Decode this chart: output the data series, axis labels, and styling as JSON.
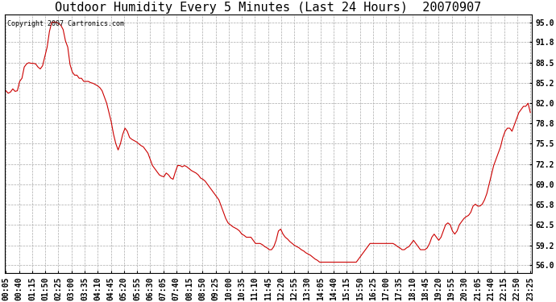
{
  "title": "Outdoor Humidity Every 5 Minutes (Last 24 Hours)  20070907",
  "copyright_text": "Copyright 2007 Cartronics.com",
  "line_color": "#cc0000",
  "background_color": "#ffffff",
  "grid_color": "#aaaaaa",
  "yticks": [
    56.0,
    59.2,
    62.5,
    65.8,
    69.0,
    72.2,
    75.5,
    78.8,
    82.0,
    85.2,
    88.5,
    91.8,
    95.0
  ],
  "ylim": [
    54.8,
    96.2
  ],
  "title_fontsize": 11,
  "tick_fontsize": 7,
  "x_tick_labels": [
    "00:05",
    "00:40",
    "01:15",
    "01:50",
    "02:25",
    "03:00",
    "03:35",
    "04:10",
    "04:45",
    "05:20",
    "05:55",
    "06:30",
    "07:05",
    "07:40",
    "08:15",
    "08:50",
    "09:25",
    "10:00",
    "10:35",
    "11:10",
    "11:45",
    "12:20",
    "12:55",
    "13:30",
    "14:05",
    "14:40",
    "15:15",
    "15:50",
    "16:25",
    "17:00",
    "17:35",
    "18:10",
    "18:45",
    "19:20",
    "19:55",
    "20:30",
    "21:05",
    "21:40",
    "22:15",
    "22:50",
    "23:25"
  ],
  "humidity_values": [
    84.0,
    83.6,
    83.8,
    84.3,
    83.9,
    84.0,
    85.5,
    86.0,
    87.8,
    88.3,
    88.5,
    88.4,
    88.4,
    88.3,
    87.8,
    87.5,
    88.0,
    89.5,
    91.0,
    93.5,
    95.0,
    95.0,
    95.0,
    94.8,
    94.5,
    93.8,
    92.0,
    91.0,
    88.2,
    87.0,
    86.5,
    86.5,
    86.0,
    86.0,
    85.5,
    85.5,
    85.5,
    85.3,
    85.2,
    85.0,
    84.8,
    84.5,
    84.0,
    83.0,
    82.0,
    80.5,
    79.0,
    77.0,
    75.5,
    74.5,
    75.5,
    77.0,
    78.0,
    77.5,
    76.5,
    76.2,
    76.0,
    75.8,
    75.5,
    75.2,
    75.0,
    74.5,
    74.0,
    73.0,
    72.0,
    71.5,
    71.0,
    70.5,
    70.3,
    70.2,
    70.8,
    70.5,
    70.0,
    69.8,
    71.0,
    72.0,
    72.0,
    71.8,
    72.0,
    71.8,
    71.5,
    71.2,
    71.0,
    70.8,
    70.5,
    70.0,
    69.8,
    69.5,
    69.0,
    68.5,
    68.0,
    67.5,
    67.0,
    66.5,
    65.5,
    64.5,
    63.5,
    62.8,
    62.5,
    62.2,
    62.0,
    61.8,
    61.5,
    61.0,
    60.8,
    60.5,
    60.5,
    60.5,
    60.0,
    59.5,
    59.5,
    59.5,
    59.3,
    59.0,
    58.8,
    58.5,
    58.5,
    59.0,
    60.0,
    61.5,
    61.8,
    61.0,
    60.5,
    60.2,
    59.8,
    59.5,
    59.2,
    59.0,
    58.8,
    58.5,
    58.3,
    58.0,
    57.8,
    57.6,
    57.3,
    57.0,
    56.8,
    56.5,
    56.5,
    56.5,
    56.5,
    56.5,
    56.5,
    56.5,
    56.5,
    56.5,
    56.5,
    56.5,
    56.5,
    56.5,
    56.5,
    56.5,
    56.5,
    56.5,
    57.0,
    57.5,
    58.0,
    58.5,
    59.0,
    59.5,
    59.5,
    59.5,
    59.5,
    59.5,
    59.5,
    59.5,
    59.5,
    59.5,
    59.5,
    59.5,
    59.3,
    59.0,
    58.8,
    58.5,
    58.5,
    58.8,
    59.0,
    59.5,
    60.0,
    59.5,
    59.0,
    58.5,
    58.5,
    58.5,
    58.8,
    59.5,
    60.5,
    61.0,
    60.5,
    60.0,
    60.5,
    61.5,
    62.5,
    62.8,
    62.5,
    61.5,
    61.0,
    61.5,
    62.5,
    63.0,
    63.5,
    63.8,
    64.0,
    64.5,
    65.5,
    65.8,
    65.5,
    65.5,
    65.8,
    66.5,
    67.5,
    69.0,
    70.5,
    72.0,
    73.0,
    74.0,
    75.0,
    76.5,
    77.5,
    78.0,
    78.0,
    77.5,
    78.5,
    79.5,
    80.5,
    81.0,
    81.5,
    81.5,
    82.0,
    80.5
  ]
}
